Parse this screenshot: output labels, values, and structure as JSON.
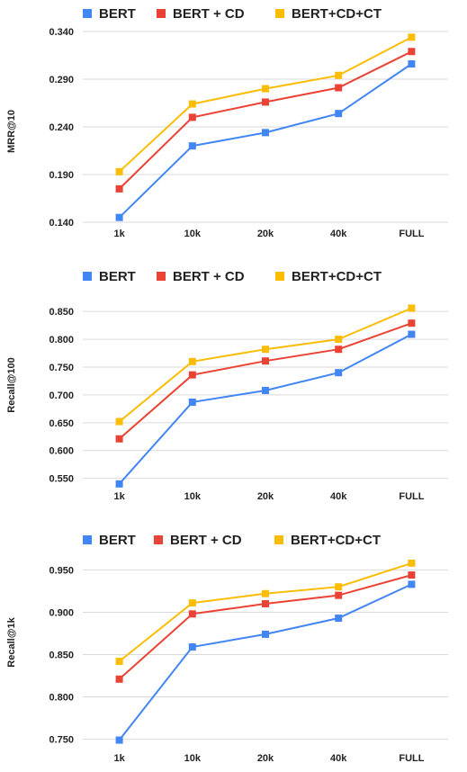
{
  "colors": {
    "BERT": "#4285f4",
    "BERT + CD": "#ea4335",
    "BERT+CD+CT": "#fbbc04",
    "grid": "#d9d9d9",
    "text": "#222222"
  },
  "chart_data": [
    {
      "type": "line",
      "title": "",
      "xlabel": "",
      "ylabel": "MRR@10",
      "categories": [
        "1k",
        "10k",
        "20k",
        "40k",
        "FULL"
      ],
      "y_ticks": [
        "0.140",
        "0.190",
        "0.240",
        "0.290",
        "0.340"
      ],
      "ylim": [
        0.14,
        0.34
      ],
      "grid": true,
      "legend": "top",
      "series": [
        {
          "name": "BERT",
          "values": [
            0.145,
            0.22,
            0.234,
            0.254,
            0.306
          ]
        },
        {
          "name": "BERT + CD",
          "values": [
            0.175,
            0.25,
            0.266,
            0.281,
            0.319
          ]
        },
        {
          "name": "BERT+CD+CT",
          "values": [
            0.193,
            0.264,
            0.28,
            0.294,
            0.334
          ]
        }
      ]
    },
    {
      "type": "line",
      "title": "",
      "xlabel": "",
      "ylabel": "Recall@100",
      "categories": [
        "1k",
        "10k",
        "20k",
        "40k",
        "FULL"
      ],
      "y_ticks": [
        "0.550",
        "0.600",
        "0.650",
        "0.700",
        "0.750",
        "0.800",
        "0.850"
      ],
      "ylim": [
        0.53,
        0.86
      ],
      "grid": true,
      "legend": "top",
      "series": [
        {
          "name": "BERT",
          "values": [
            0.54,
            0.687,
            0.708,
            0.74,
            0.809
          ]
        },
        {
          "name": "BERT + CD",
          "values": [
            0.621,
            0.736,
            0.761,
            0.782,
            0.829
          ]
        },
        {
          "name": "BERT+CD+CT",
          "values": [
            0.652,
            0.76,
            0.782,
            0.8,
            0.856
          ]
        }
      ]
    },
    {
      "type": "line",
      "title": "",
      "xlabel": "",
      "ylabel": "Recall@1k",
      "categories": [
        "1k",
        "10k",
        "20k",
        "40k",
        "FULL"
      ],
      "y_ticks": [
        "0.750",
        "0.800",
        "0.850",
        "0.900",
        "0.950"
      ],
      "ylim": [
        0.74,
        0.96
      ],
      "grid": true,
      "legend": "top",
      "series": [
        {
          "name": "BERT",
          "values": [
            0.749,
            0.859,
            0.874,
            0.893,
            0.933
          ]
        },
        {
          "name": "BERT + CD",
          "values": [
            0.821,
            0.898,
            0.91,
            0.92,
            0.944
          ]
        },
        {
          "name": "BERT+CD+CT",
          "values": [
            0.842,
            0.911,
            0.922,
            0.93,
            0.958
          ]
        }
      ]
    }
  ]
}
